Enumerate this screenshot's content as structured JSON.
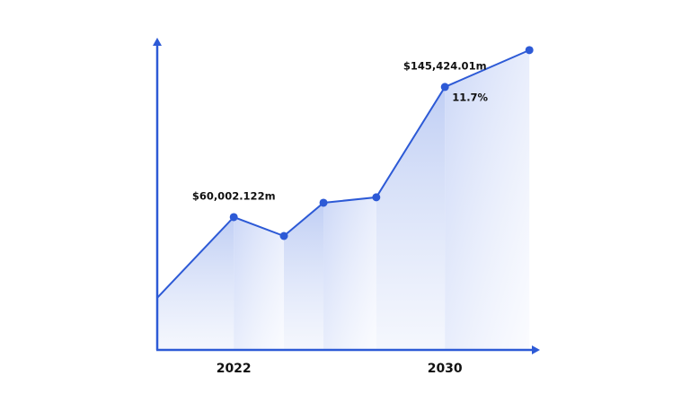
{
  "chart_data": {
    "type": "area",
    "x": [
      2019.1,
      2022,
      2023.9,
      2025.4,
      2027.4,
      2030,
      2033.2
    ],
    "values": [
      7000,
      60002.122,
      47600,
      69400,
      73000,
      145424.01,
      169600
    ],
    "value_labels": [
      null,
      "$60,002.122m",
      null,
      null,
      null,
      "$145,424.01m",
      null
    ],
    "annotation": "11.7%",
    "xlim": [
      2019.1,
      2033.5
    ],
    "xticks": [
      2022,
      2030
    ],
    "ylim": [
      -27200,
      176000
    ],
    "color": "#2d5ad6",
    "grid": false
  }
}
